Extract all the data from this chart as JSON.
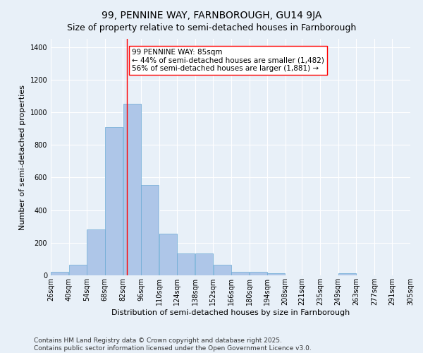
{
  "title": "99, PENNINE WAY, FARNBOROUGH, GU14 9JA",
  "subtitle": "Size of property relative to semi-detached houses in Farnborough",
  "xlabel": "Distribution of semi-detached houses by size in Farnborough",
  "ylabel": "Number of semi-detached properties",
  "bins": [
    26,
    40,
    54,
    68,
    82,
    96,
    110,
    124,
    138,
    152,
    166,
    180,
    194,
    208,
    221,
    235,
    249,
    263,
    277,
    291,
    305
  ],
  "counts": [
    20,
    65,
    280,
    910,
    1050,
    555,
    255,
    135,
    135,
    65,
    20,
    20,
    13,
    0,
    0,
    0,
    13,
    0,
    0,
    0,
    0
  ],
  "bar_color": "#aec6e8",
  "bar_edge_color": "#6aaad4",
  "vline_x": 85,
  "vline_color": "red",
  "annotation_text": "99 PENNINE WAY: 85sqm\n← 44% of semi-detached houses are smaller (1,482)\n56% of semi-detached houses are larger (1,881) →",
  "box_color": "white",
  "box_edge_color": "red",
  "ylim": [
    0,
    1450
  ],
  "background_color": "#e8f0f8",
  "grid_color": "white",
  "footnote": "Contains HM Land Registry data © Crown copyright and database right 2025.\nContains public sector information licensed under the Open Government Licence v3.0.",
  "title_fontsize": 10,
  "subtitle_fontsize": 9,
  "label_fontsize": 8,
  "tick_fontsize": 7,
  "annot_fontsize": 7.5,
  "footnote_fontsize": 6.5
}
